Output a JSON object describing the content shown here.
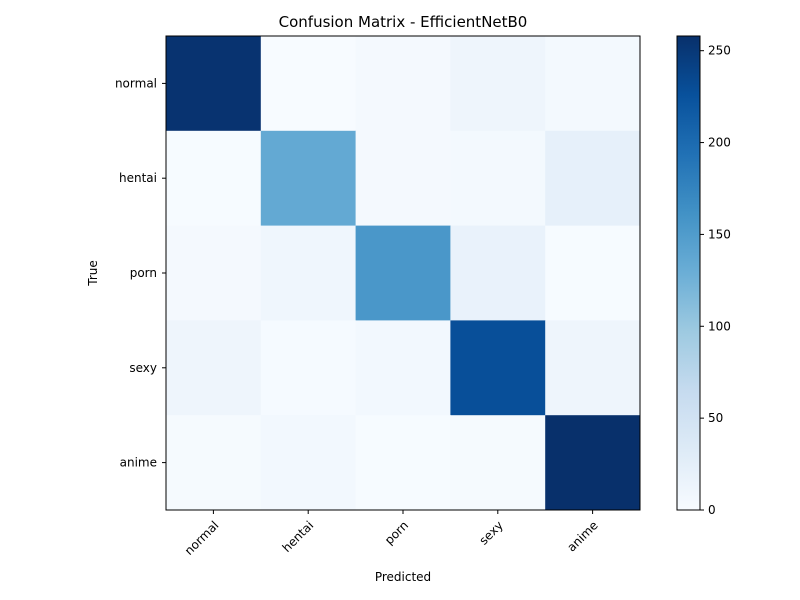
{
  "chart_data": {
    "type": "heatmap",
    "title": "Confusion Matrix - EfficientNetB0",
    "xlabel": "Predicted",
    "ylabel": "True",
    "x_categories": [
      "normal",
      "hentai",
      "porn",
      "sexy",
      "anime"
    ],
    "y_categories": [
      "normal",
      "hentai",
      "porn",
      "sexy",
      "anime"
    ],
    "values": [
      [
        255,
        0,
        4,
        12,
        5
      ],
      [
        1,
        135,
        4,
        5,
        22
      ],
      [
        4,
        10,
        155,
        18,
        1
      ],
      [
        12,
        2,
        6,
        228,
        12
      ],
      [
        3,
        6,
        1,
        3,
        258
      ]
    ],
    "colormap": "Blues",
    "colorbar": {
      "range": [
        0,
        258
      ],
      "ticks": [
        0,
        50,
        100,
        150,
        200,
        250
      ]
    }
  }
}
